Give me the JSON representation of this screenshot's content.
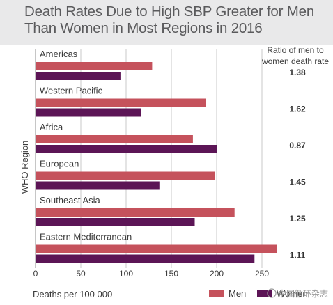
{
  "chart_data": {
    "type": "bar",
    "orientation": "horizontal",
    "title_lines": [
      "Death Rates Due to High SBP Greater for Men",
      "Than Women in Most Regions in 2016"
    ],
    "categories": [
      "Americas",
      "Western Pacific",
      "Africa",
      "European",
      "Southeast Asia",
      "Eastern Mediterranean"
    ],
    "series": [
      {
        "name": "Men",
        "color": "#c5525c",
        "values": [
          128,
          187,
          173,
          197,
          219,
          266
        ]
      },
      {
        "name": "Women",
        "color": "#5c1556",
        "values": [
          93,
          116,
          200,
          136,
          175,
          241
        ]
      }
    ],
    "ratio_header_lines": [
      "Ratio of men to",
      "women death rate"
    ],
    "ratios": [
      "1.38",
      "1.62",
      "0.87",
      "1.45",
      "1.25",
      "1.11"
    ],
    "xlabel": "Deaths per 100 000",
    "ylabel": "WHO Region",
    "xlim": [
      0,
      270
    ],
    "xticks": [
      0,
      50,
      100,
      150,
      200,
      250
    ],
    "grid": "vertical",
    "legend_position": "bottom-right",
    "watermark": "中国循环杂志"
  }
}
